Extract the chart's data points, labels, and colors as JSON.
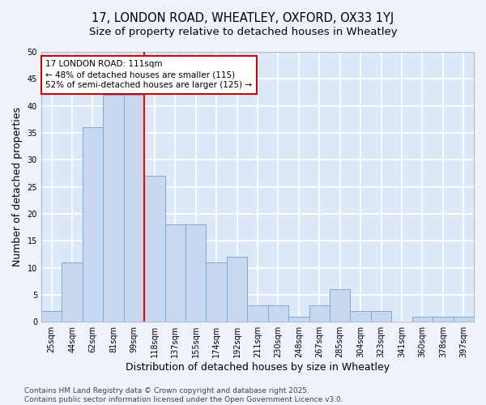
{
  "title_line1": "17, LONDON ROAD, WHEATLEY, OXFORD, OX33 1YJ",
  "title_line2": "Size of property relative to detached houses in Wheatley",
  "xlabel": "Distribution of detached houses by size in Wheatley",
  "ylabel": "Number of detached properties",
  "categories": [
    "25sqm",
    "44sqm",
    "62sqm",
    "81sqm",
    "99sqm",
    "118sqm",
    "137sqm",
    "155sqm",
    "174sqm",
    "192sqm",
    "211sqm",
    "230sqm",
    "248sqm",
    "267sqm",
    "285sqm",
    "304sqm",
    "323sqm",
    "341sqm",
    "360sqm",
    "378sqm",
    "397sqm"
  ],
  "values": [
    2,
    11,
    36,
    42,
    42,
    27,
    18,
    18,
    11,
    12,
    3,
    3,
    1,
    3,
    6,
    2,
    2,
    0,
    1,
    1,
    1
  ],
  "bar_color": "#c8d8f0",
  "bar_edge_color": "#7aaad0",
  "red_line_x": 4.5,
  "annotation_line1": "17 LONDON ROAD: 111sqm",
  "annotation_line2": "← 48% of detached houses are smaller (115)",
  "annotation_line3": "52% of semi-detached houses are larger (125) →",
  "annotation_box_color": "#cc0000",
  "ylim": [
    0,
    50
  ],
  "yticks": [
    0,
    5,
    10,
    15,
    20,
    25,
    30,
    35,
    40,
    45,
    50
  ],
  "bg_color": "#dce8f8",
  "grid_color": "#ffffff",
  "fig_bg_color": "#eef2fa",
  "footer": "Contains HM Land Registry data © Crown copyright and database right 2025.\nContains public sector information licensed under the Open Government Licence v3.0.",
  "title_fontsize": 10.5,
  "subtitle_fontsize": 9.5,
  "axis_label_fontsize": 9,
  "tick_fontsize": 7,
  "annotation_fontsize": 7.5,
  "footer_fontsize": 6.5
}
